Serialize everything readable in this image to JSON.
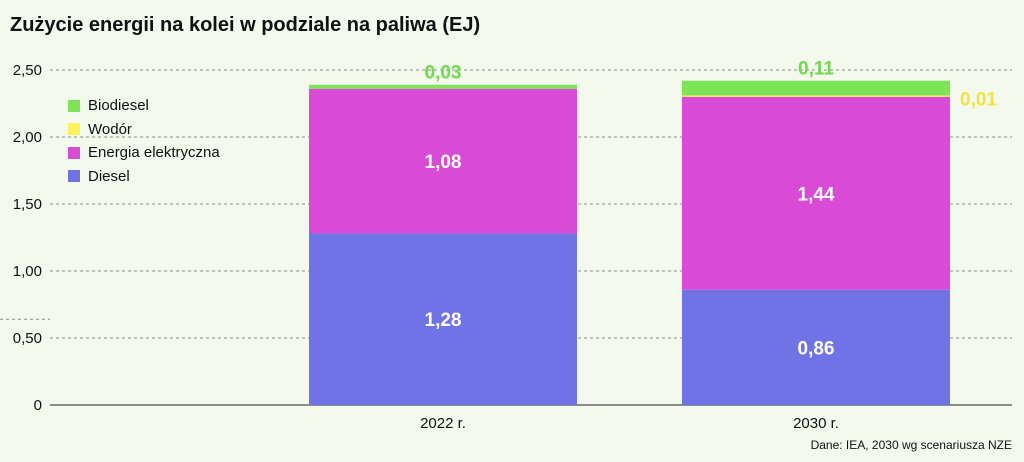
{
  "title": "Zużycie energii na kolei w podziale na paliwa (EJ)",
  "source": "Dane: IEA, 2030 wg scenariusza NZE",
  "colors": {
    "background": "#f3f9ed",
    "Biodiesel": "#7de458",
    "Wodór": "#fbf35a",
    "Energia elektryczna": "#d94bd6",
    "Diesel": "#6f73e6"
  },
  "chart_data": {
    "type": "bar",
    "stacked": true,
    "title": "Zużycie energii na kolei w podziale na paliwa (EJ)",
    "categories": [
      "2022 r.",
      "2030 r."
    ],
    "series": [
      {
        "name": "Diesel",
        "values": [
          1.28,
          0.86
        ],
        "labels": [
          "1,28",
          "0,86"
        ],
        "color": "#6f73e6",
        "label_color": "#ffffff"
      },
      {
        "name": "Energia elektryczna",
        "values": [
          1.08,
          1.44
        ],
        "labels": [
          "1,08",
          "1,44"
        ],
        "color": "#d94bd6",
        "label_color": "#ffffff"
      },
      {
        "name": "Wodór",
        "values": [
          0,
          0.01
        ],
        "labels": [
          "",
          "0,01"
        ],
        "color": "#fbf35a",
        "label_color": "#f2e53a"
      },
      {
        "name": "Biodiesel",
        "values": [
          0.03,
          0.11
        ],
        "labels": [
          "0,03",
          "0,11"
        ],
        "color": "#7de458",
        "label_color": "#6edb4a"
      }
    ],
    "legend_order": [
      "Biodiesel",
      "Wodór",
      "Energia elektryczna",
      "Diesel"
    ],
    "yticks": [
      0,
      0.5,
      1.0,
      1.5,
      2.0,
      2.5
    ],
    "ytick_labels": [
      "0",
      "0,50",
      "1,00",
      "1,50",
      "2,00",
      "2,50"
    ],
    "ylim": [
      0,
      2.5
    ],
    "grid": "horizontal dashed",
    "legend_position": "top-left"
  }
}
